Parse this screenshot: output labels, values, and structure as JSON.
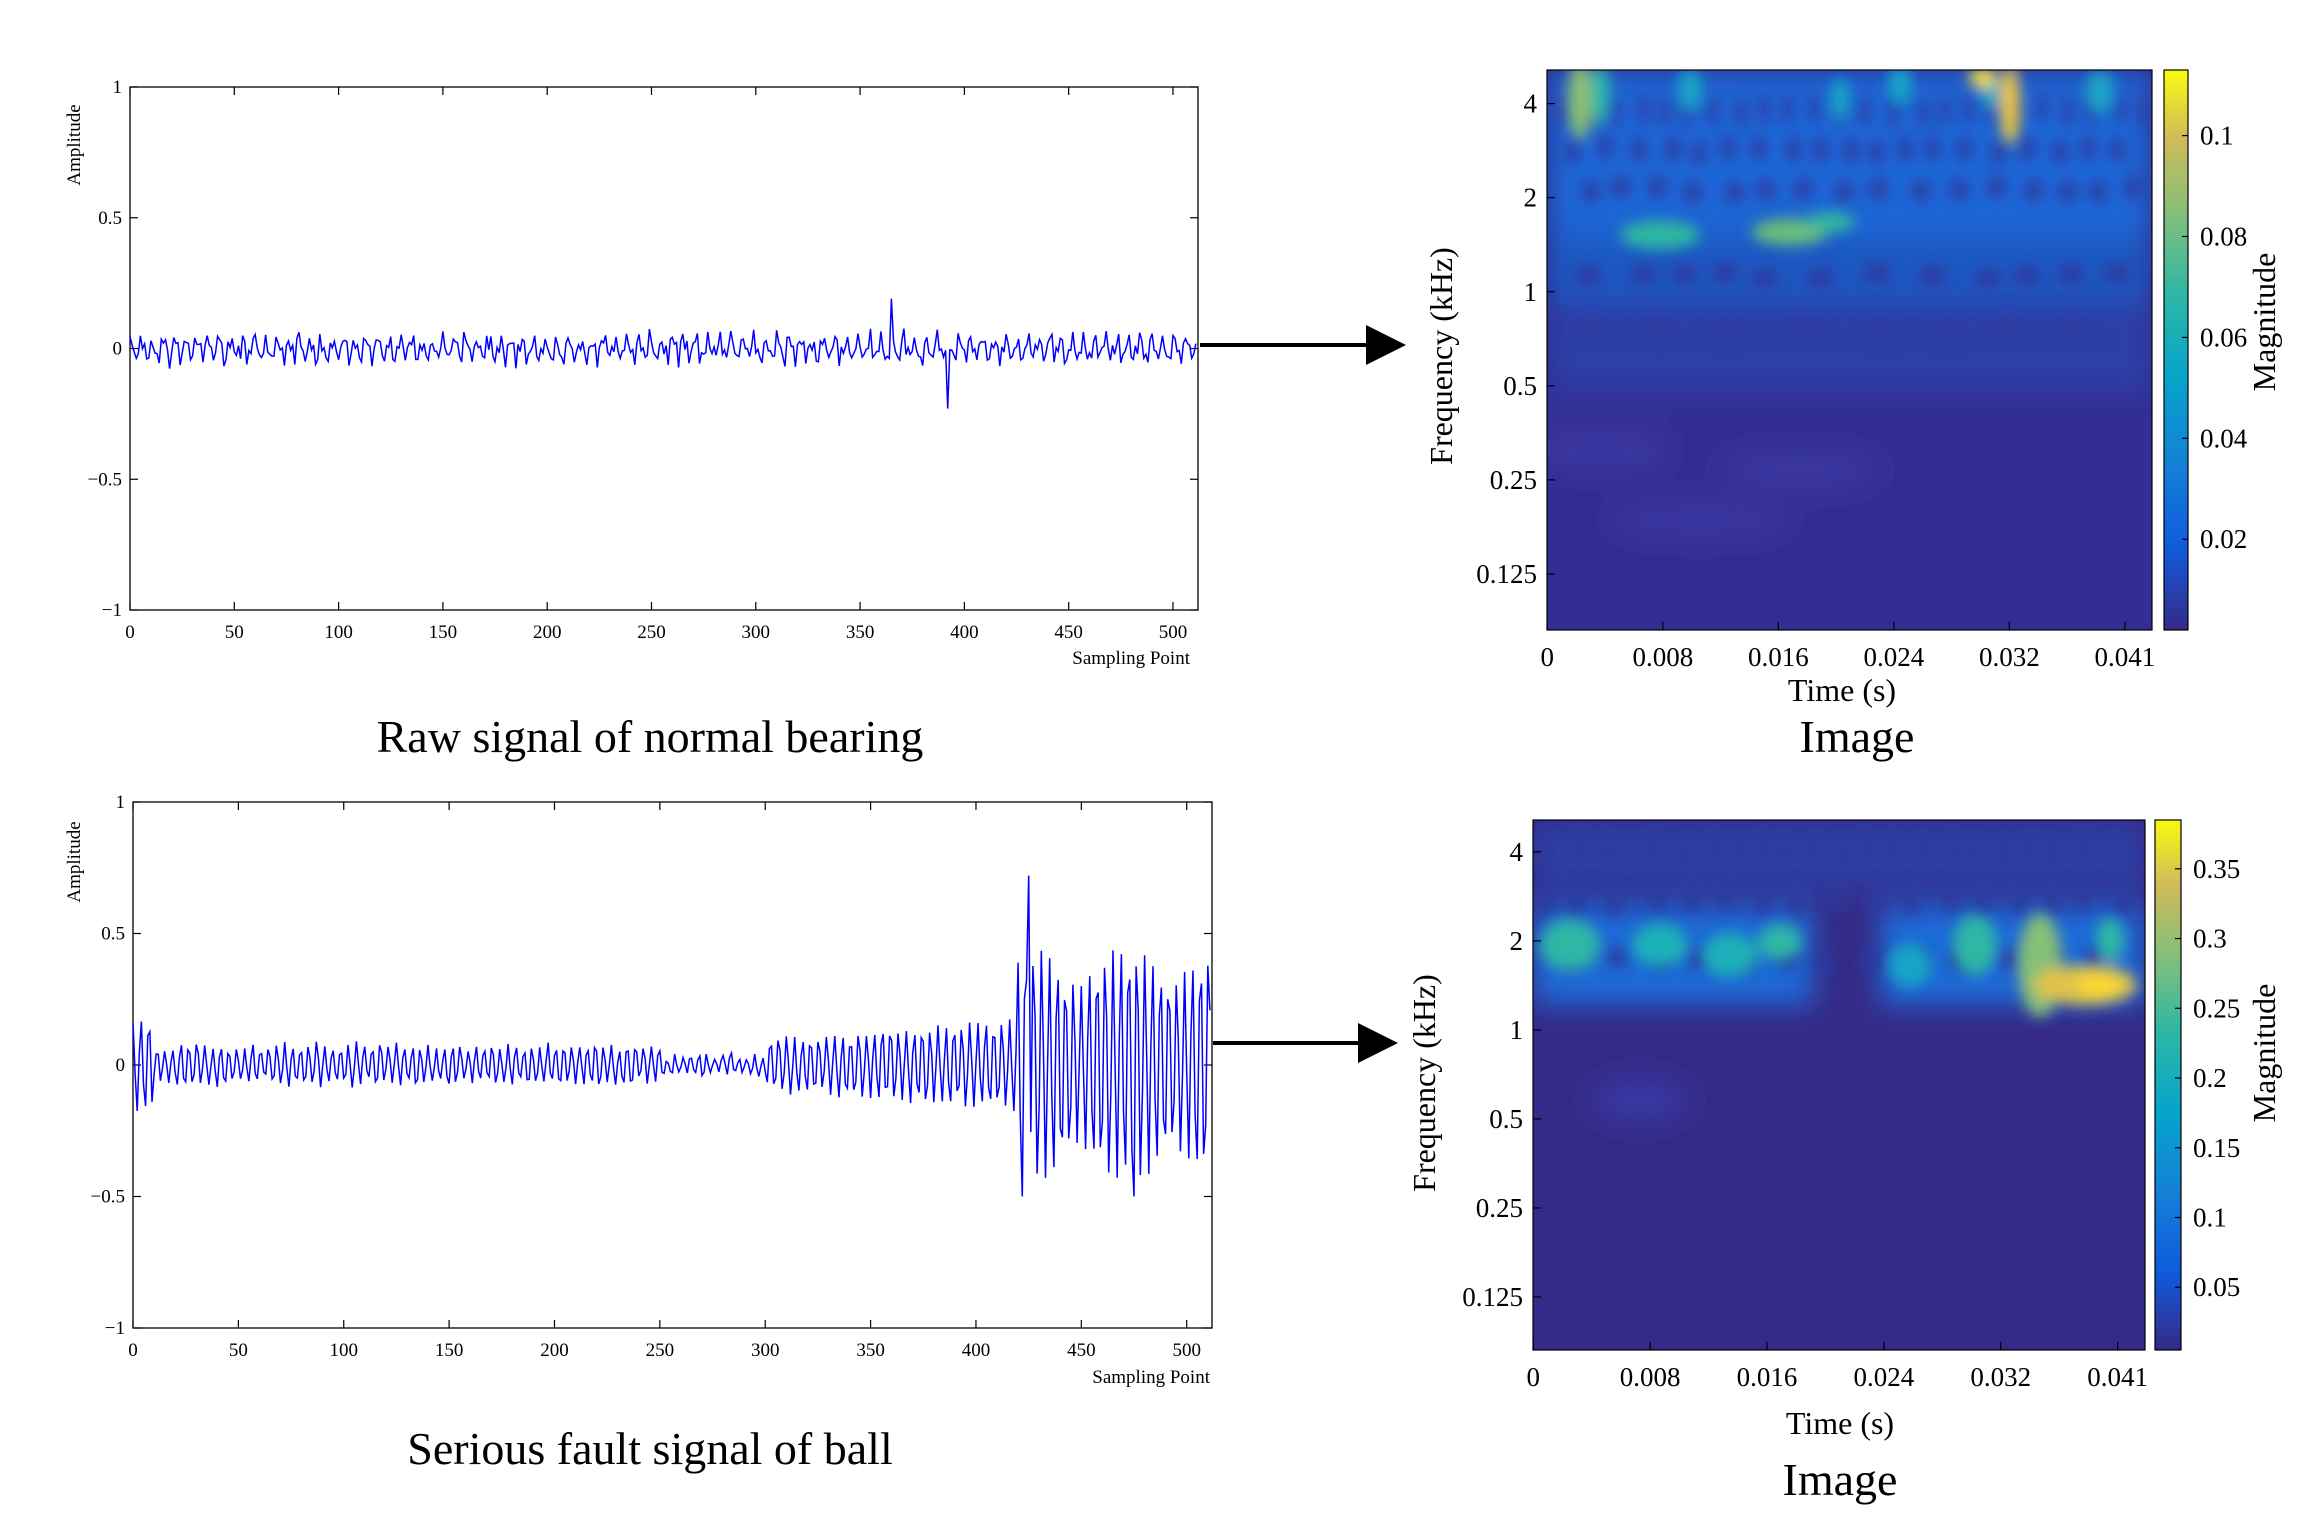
{
  "chart_data": [
    {
      "type": "line",
      "id": "normal-signal",
      "caption": "Raw signal of normal bearing",
      "xlabel": "Sampling Point",
      "ylabel": "Amplitude",
      "xlim": [
        0,
        512
      ],
      "ylim": [
        -1,
        1
      ],
      "xticks": [
        0,
        50,
        100,
        150,
        200,
        250,
        300,
        350,
        400,
        450,
        500
      ],
      "yticks": [
        1,
        0.5,
        0,
        -0.5,
        -1
      ],
      "ytick_labels": [
        "1",
        "0.5",
        "0",
        "−0.5",
        "−1"
      ],
      "series": [
        {
          "name": "signal",
          "color": "#0000ff",
          "n": 512,
          "typical_amplitude": 0.05,
          "peaks": [
            {
              "x": 365,
              "y": 0.19
            },
            {
              "x": 392,
              "y": -0.23
            }
          ]
        }
      ]
    },
    {
      "type": "heatmap",
      "id": "normal-scalogram",
      "caption": "Image",
      "xlabel": "Time (s)",
      "ylabel": "Frequency (kHz)",
      "colorbar_label": "Magnitude",
      "xtick_labels": [
        "0",
        "0.008",
        "0.016",
        "0.024",
        "0.032",
        "0.041"
      ],
      "ytick_labels": [
        "4",
        "2",
        "1",
        "0.5",
        "0.25",
        "0.125"
      ],
      "colorbar_ticks": [
        "0.1",
        "0.08",
        "0.06",
        "0.04",
        "0.02"
      ],
      "colorbar_range": [
        0.002,
        0.113
      ],
      "colormap": "parula"
    },
    {
      "type": "line",
      "id": "fault-signal",
      "caption": "Serious fault signal of ball",
      "xlabel": "Sampling Point",
      "ylabel": "Amplitude",
      "xlim": [
        0,
        512
      ],
      "ylim": [
        -1,
        1
      ],
      "xticks": [
        0,
        50,
        100,
        150,
        200,
        250,
        300,
        350,
        400,
        450,
        500
      ],
      "yticks": [
        1,
        0.5,
        0,
        -0.5,
        -1
      ],
      "ytick_labels": [
        "1",
        "0.5",
        "0",
        "−0.5",
        "−1"
      ],
      "series": [
        {
          "name": "signal",
          "color": "#0000ff",
          "n": 512,
          "typical_amplitude": 0.1,
          "peaks": [
            {
              "x": 425,
              "y": 0.72
            },
            {
              "x": 422,
              "y": -0.5
            },
            {
              "x": 475,
              "y": -0.5
            }
          ]
        }
      ]
    },
    {
      "type": "heatmap",
      "id": "fault-scalogram",
      "caption": "Image",
      "xlabel": "Time (s)",
      "ylabel": "Frequency (kHz)",
      "colorbar_label": "Magnitude",
      "xtick_labels": [
        "0",
        "0.008",
        "0.016",
        "0.024",
        "0.032",
        "0.041"
      ],
      "ytick_labels": [
        "4",
        "2",
        "1",
        "0.5",
        "0.25",
        "0.125"
      ],
      "colorbar_ticks": [
        "0.35",
        "0.3",
        "0.25",
        "0.2",
        "0.15",
        "0.1",
        "0.05"
      ],
      "colorbar_range": [
        0.005,
        0.385
      ],
      "colormap": "parula"
    }
  ],
  "colors": {
    "signal": "#0000ff",
    "arrow": "#000000",
    "parula_low": "#352a87",
    "parula_mid": "#0d9bd7",
    "parula_high": "#f9fb0e"
  }
}
